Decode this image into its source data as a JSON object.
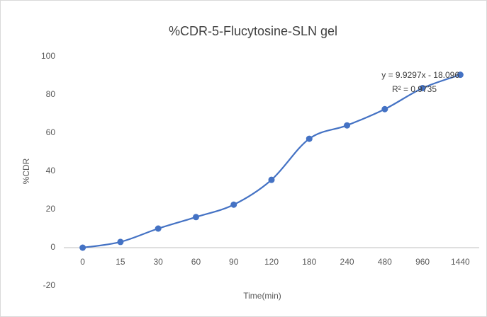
{
  "chart_data": {
    "type": "line",
    "title": "%CDR-5-Flucytosine-SLN gel",
    "x_label": "Time(min)",
    "y_label": "%CDR",
    "categories": [
      "0",
      "15",
      "30",
      "60",
      "90",
      "120",
      "180",
      "240",
      "480",
      "960",
      "1440"
    ],
    "series": [
      {
        "name": "%CDR",
        "color": "#4472c4",
        "values": [
          0,
          3,
          10,
          16,
          22.5,
          35.5,
          57,
          64,
          72.5,
          83.5,
          90.5
        ]
      }
    ],
    "ylim": [
      -20,
      100
    ],
    "yticks": [
      -20,
      0,
      20,
      40,
      60,
      80,
      100
    ],
    "grid": false,
    "annotations": [
      "y = 9.9297x - 18.096",
      "R² = 0.9735"
    ]
  }
}
